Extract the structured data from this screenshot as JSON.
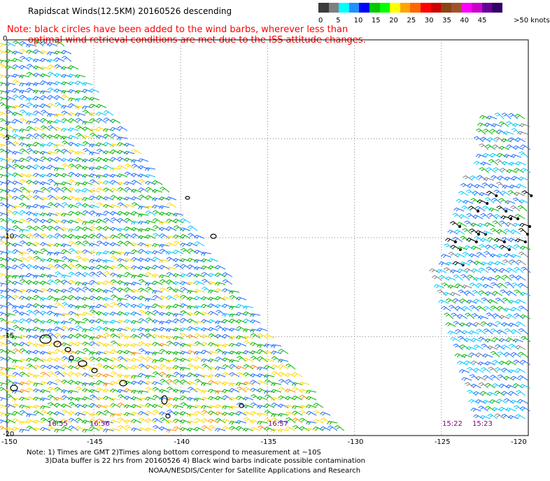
{
  "title": "Rapidscat Winds(12.5KM) 20160526 descending",
  "note_line1": "Note: black circles have been added to the wind barbs, wherever less than",
  "note_line2": "optimal wind retrieval conditions are met due to the ISS attitude changes.",
  "legend": {
    "units": ">50 knots",
    "levels": [
      "0",
      "5",
      "10",
      "15",
      "20",
      "25",
      "30",
      "35",
      "40",
      "45"
    ],
    "colors": [
      "#3c3c3c",
      "#7f7f7f",
      "#00ffff",
      "#1e90ff",
      "#0000ff",
      "#00c800",
      "#00ff00",
      "#ffff00",
      "#ffa500",
      "#ff6600",
      "#ff0000",
      "#cc0000",
      "#8b4513",
      "#a0522d",
      "#ff00ff",
      "#cc00cc",
      "#660099",
      "#330066"
    ]
  },
  "map": {
    "lon_labels": [
      "-150",
      "-145",
      "-140",
      "-135",
      "-130",
      "-125",
      "-120"
    ],
    "lat_labels": [
      "0",
      "-5",
      "-10",
      "-15",
      "-20"
    ],
    "lon_range": [
      -150,
      -120
    ],
    "lat_range": [
      -20,
      0
    ],
    "grid": true
  },
  "pass_times": [
    "16:55",
    "16:56",
    "16:57",
    "15:22",
    "15:23"
  ],
  "footnote1": "Note: 1) Times are GMT 2)Times along bottom correspond to measurement at ~10S",
  "footnote2": "3)Data buffer is 22 hrs from 20160526 4) Black wind barbs indicate possible contamination",
  "credit": "NOAA/NESDIS/Center for Satellite Applications and Research"
}
